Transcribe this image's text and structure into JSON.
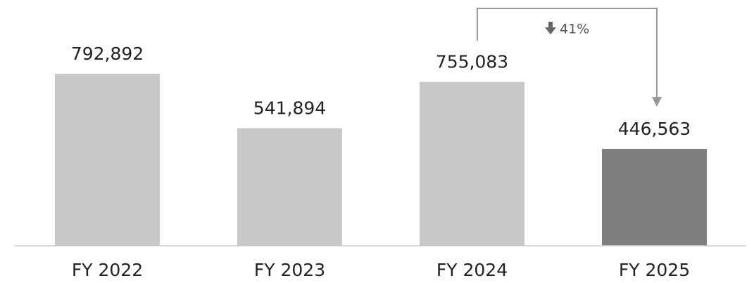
{
  "chart_data": {
    "type": "bar",
    "categories": [
      "FY 2022",
      "FY 2023",
      "FY 2024",
      "FY 2025"
    ],
    "values": [
      792892,
      541894,
      755083,
      446563
    ],
    "value_labels": [
      "792,892",
      "541,894",
      "755,083",
      "446,563"
    ],
    "colors": [
      "#c8c8c8",
      "#c8c8c8",
      "#c8c8c8",
      "#7f7f7f"
    ],
    "annotation": "41%"
  }
}
